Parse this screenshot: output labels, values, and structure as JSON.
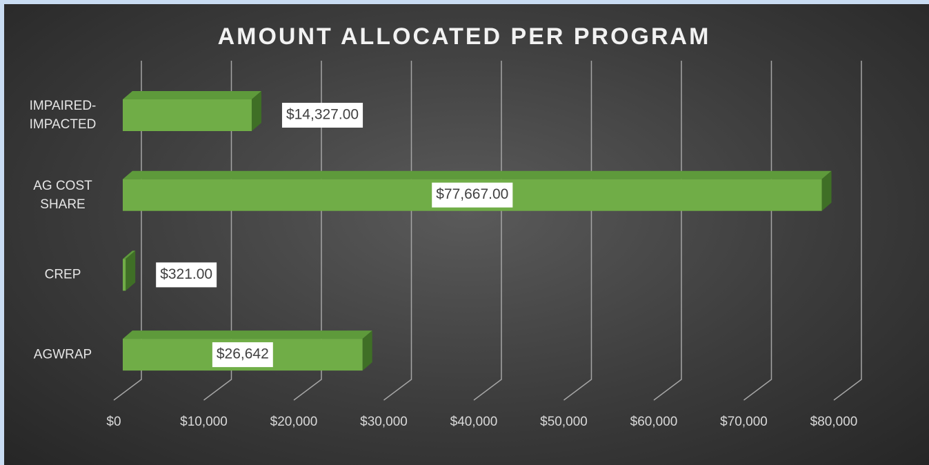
{
  "chart_data": {
    "type": "bar",
    "orientation": "horizontal",
    "title": "AMOUNT ALLOCATED PER PROGRAM",
    "categories": [
      "IMPAIRED-IMPACTED",
      "AG COST SHARE",
      "CREP",
      "AGWRAP"
    ],
    "values": [
      14327,
      77667,
      321,
      26642
    ],
    "value_labels": [
      "$14,327.00",
      "$77,667.00",
      "$321.00",
      "$26,642"
    ],
    "color": "#70ad47",
    "xlim": [
      0,
      80000
    ],
    "xticks": [
      {
        "value": 0,
        "label": "$0"
      },
      {
        "value": 10000,
        "label": "$10,000"
      },
      {
        "value": 20000,
        "label": "$20,000"
      },
      {
        "value": 30000,
        "label": "$30,000"
      },
      {
        "value": 40000,
        "label": "$40,000"
      },
      {
        "value": 50000,
        "label": "$50,000"
      },
      {
        "value": 60000,
        "label": "$60,000"
      },
      {
        "value": 70000,
        "label": "$70,000"
      },
      {
        "value": 80000,
        "label": "$80,000"
      }
    ],
    "grid": true
  }
}
